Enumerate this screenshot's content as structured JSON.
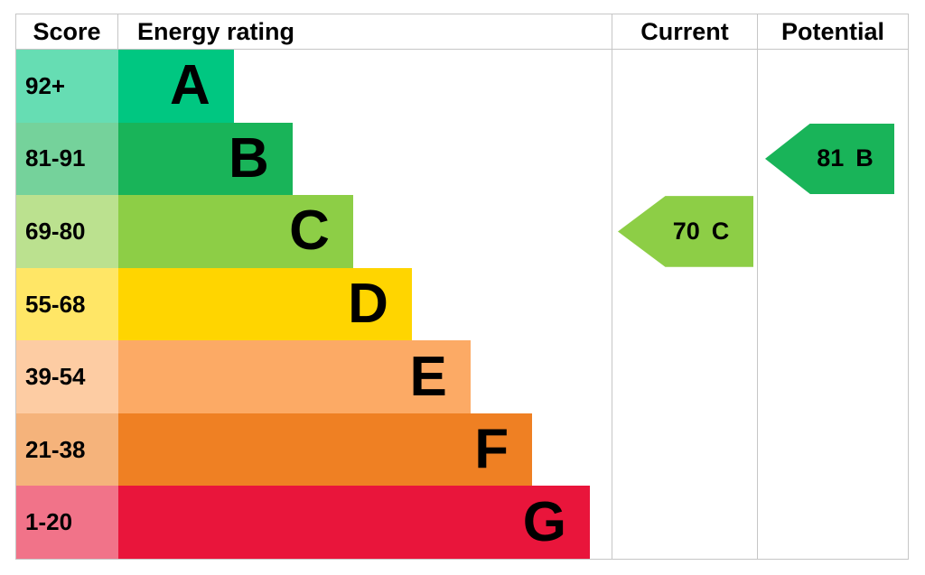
{
  "headers": {
    "score": "Score",
    "rating": "Energy rating",
    "current": "Current",
    "potential": "Potential"
  },
  "bands": [
    {
      "letter": "A",
      "score": "92+",
      "color": "#00c781",
      "tint": "#66ddb3",
      "width_pct": 23.4
    },
    {
      "letter": "B",
      "score": "81-91",
      "color": "#19b459",
      "tint": "#75d29b",
      "width_pct": 35.3
    },
    {
      "letter": "C",
      "score": "69-80",
      "color": "#8dce46",
      "tint": "#bbe18f",
      "width_pct": 47.6
    },
    {
      "letter": "D",
      "score": "55-68",
      "color": "#ffd500",
      "tint": "#ffe666",
      "width_pct": 59.5
    },
    {
      "letter": "E",
      "score": "39-54",
      "color": "#fcaa65",
      "tint": "#fdcca3",
      "width_pct": 71.4
    },
    {
      "letter": "F",
      "score": "21-38",
      "color": "#ef8023",
      "tint": "#f5b37b",
      "width_pct": 83.9
    },
    {
      "letter": "G",
      "score": "1-20",
      "color": "#e9153b",
      "tint": "#f17389",
      "width_pct": 95.6
    }
  ],
  "current": {
    "value": "70",
    "letter": "C",
    "color": "#8dce46"
  },
  "potential": {
    "value": "81",
    "letter": "B",
    "color": "#19b459"
  },
  "border_color": "#c6c6c6",
  "chart_data": {
    "type": "bar",
    "title": "EPC energy rating graph",
    "categories": [
      "A",
      "B",
      "C",
      "D",
      "E",
      "F",
      "G"
    ],
    "score_ranges": [
      "92+",
      "81-91",
      "69-80",
      "55-68",
      "39-54",
      "21-38",
      "1-20"
    ],
    "values": [
      23.4,
      35.3,
      47.6,
      59.5,
      71.4,
      83.9,
      95.6
    ],
    "value_unit": "percent of rating column width",
    "band_colors": [
      "#00c781",
      "#19b459",
      "#8dce46",
      "#ffd500",
      "#fcaa65",
      "#ef8023",
      "#e9153b"
    ],
    "columns": [
      "Score",
      "Energy rating",
      "Current",
      "Potential"
    ],
    "current_rating": {
      "score": 70,
      "band": "C"
    },
    "potential_rating": {
      "score": 81,
      "band": "B"
    },
    "legend_position": "none",
    "grid": false
  }
}
